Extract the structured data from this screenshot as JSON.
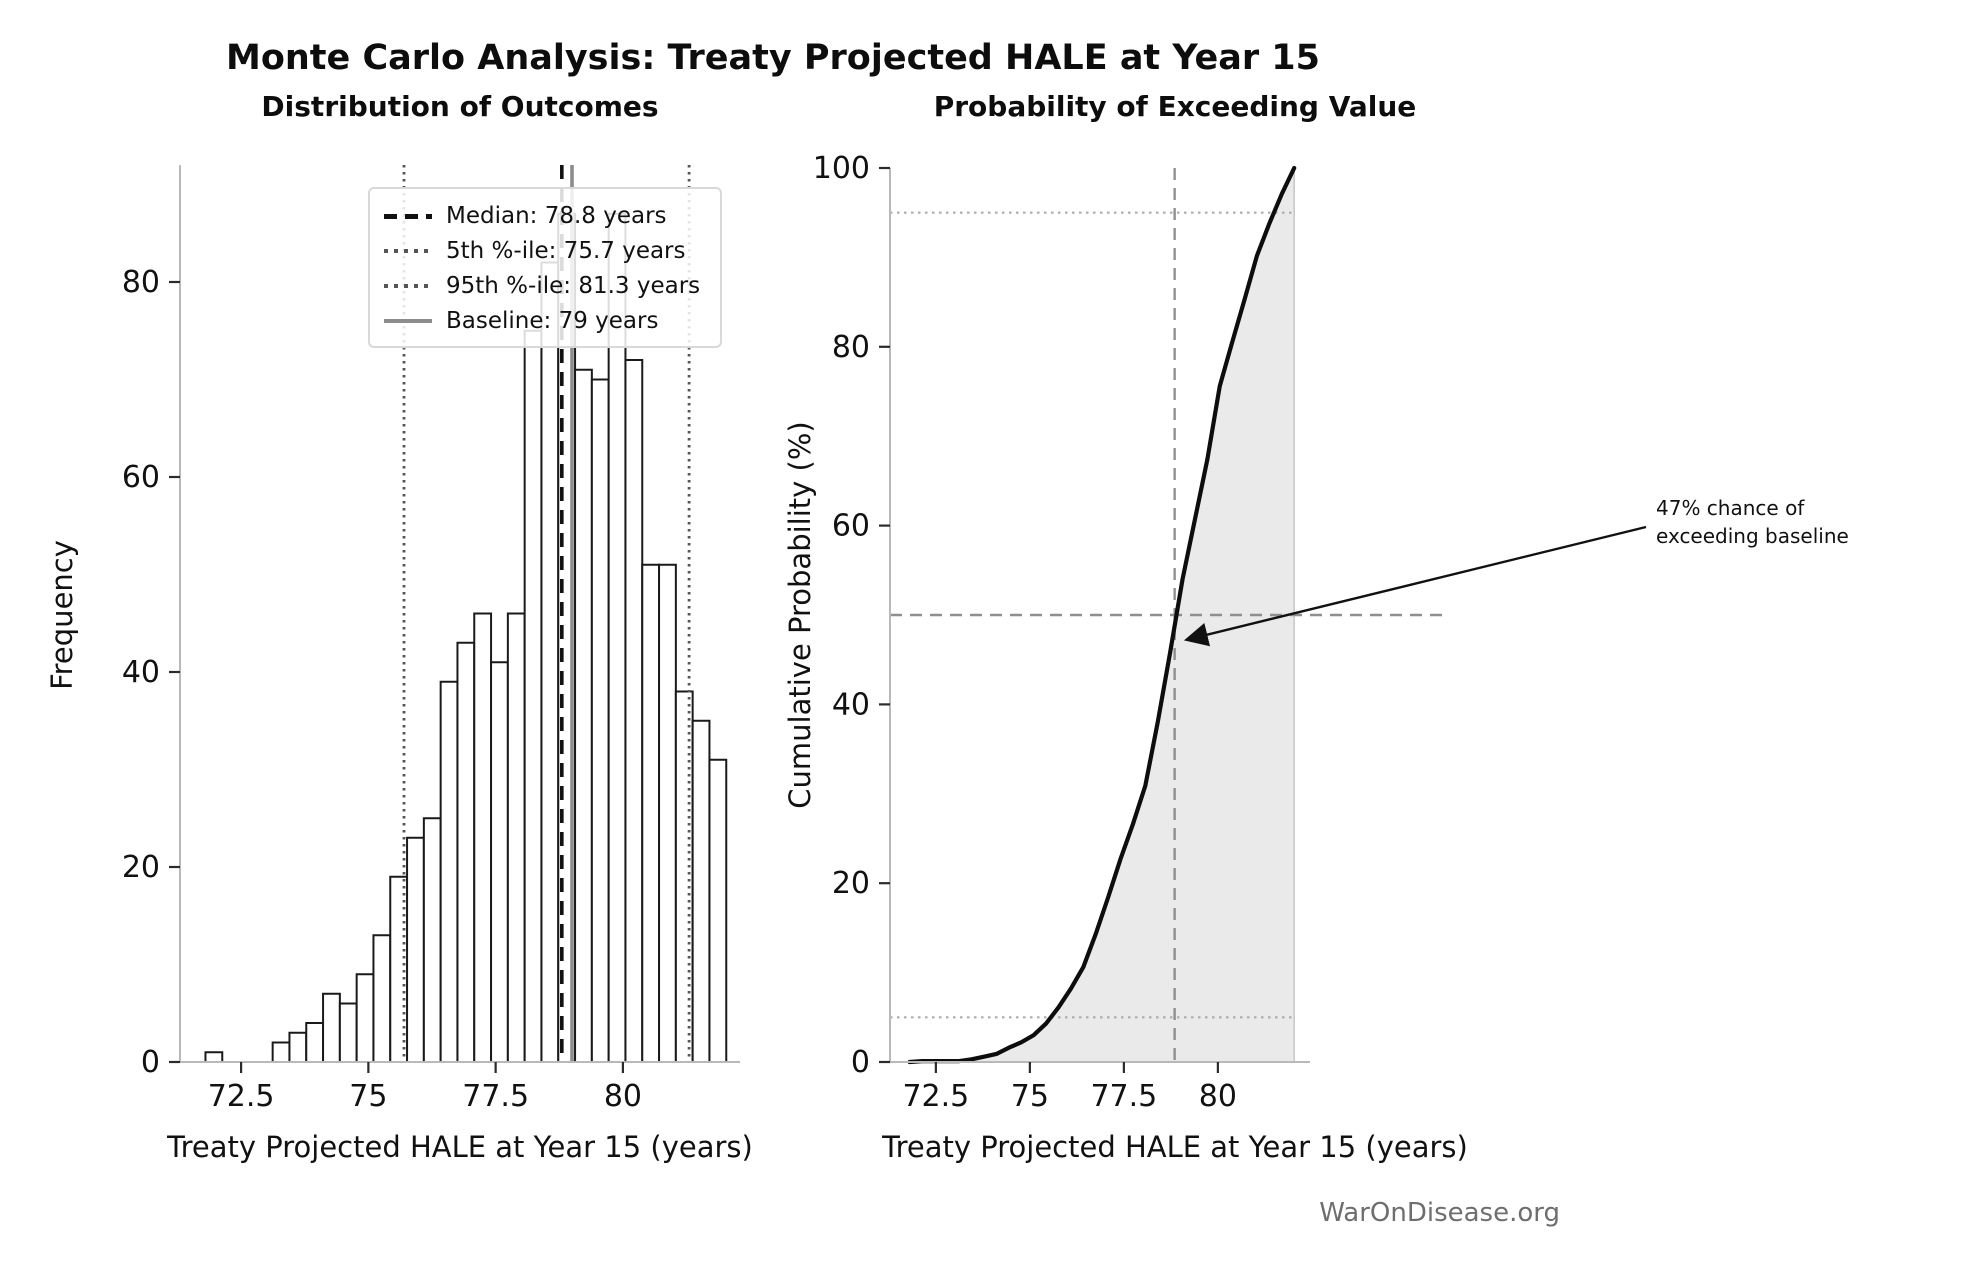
{
  "figure": {
    "title": "Monte Carlo Analysis: Treaty Projected HALE at Year 15",
    "watermark": "WarOnDisease.org"
  },
  "left_chart": {
    "title": "Distribution of Outcomes",
    "xlabel": "Treaty Projected HALE at Year 15 (years)",
    "ylabel": "Frequency",
    "legend": [
      {
        "id": "median",
        "label": "Median: 78.8 years"
      },
      {
        "id": "p5",
        "label": "5th %-ile: 75.7 years"
      },
      {
        "id": "p95",
        "label": "95th %-ile: 81.3 years"
      },
      {
        "id": "baseline",
        "label": "Baseline: 79 years"
      }
    ]
  },
  "right_chart": {
    "title": "Probability of Exceeding Value",
    "xlabel": "Treaty Projected HALE at Year 15 (years)",
    "ylabel": "Cumulative Probability (%)",
    "annotation_line1": "47% chance of",
    "annotation_line2": "exceeding baseline"
  },
  "chart_data": [
    {
      "type": "bar",
      "title": "Distribution of Outcomes",
      "xlabel": "Treaty Projected HALE at Year 15 (years)",
      "ylabel": "Frequency",
      "bin_start": 71.8,
      "bin_width": 0.33,
      "values": [
        1,
        0,
        0,
        0,
        2,
        3,
        4,
        7,
        6,
        9,
        13,
        19,
        23,
        25,
        39,
        43,
        46,
        41,
        46,
        75,
        82,
        87,
        71,
        70,
        87,
        72,
        51,
        51,
        38,
        35,
        31
      ],
      "x_ticks": [
        72.5,
        75,
        77.5,
        80
      ],
      "x_tick_labels": [
        "72.5",
        "75",
        "77.5",
        "80"
      ],
      "y_ticks": [
        0,
        20,
        40,
        60,
        80
      ],
      "y_tick_labels": [
        "0",
        "20",
        "40",
        "60",
        "80"
      ],
      "xlim": [
        71.3,
        82.3
      ],
      "ylim": [
        0,
        92
      ],
      "grid": false,
      "bar_fill": "#ffffff",
      "bar_edge": "#1a1a1a",
      "marker_lines": {
        "median": 78.8,
        "p5": 75.7,
        "p95": 81.3,
        "baseline": 79
      },
      "legend_entries": [
        "Median: 78.8 years",
        "5th %-ile: 75.7 years",
        "95th %-ile: 81.3 years",
        "Baseline: 79 years"
      ],
      "legend_position": "upper right"
    },
    {
      "type": "line",
      "title": "Probability of Exceeding Value",
      "xlabel": "Treaty Projected HALE at Year 15 (years)",
      "ylabel": "Cumulative Probability (%)",
      "x": [
        71.8,
        72.13,
        72.46,
        72.79,
        73.12,
        73.45,
        73.78,
        74.11,
        74.44,
        74.77,
        75.1,
        75.43,
        75.76,
        76.09,
        76.42,
        76.75,
        77.08,
        77.41,
        77.74,
        78.07,
        78.4,
        78.73,
        79.06,
        79.39,
        79.72,
        80.05,
        80.38,
        80.71,
        81.04,
        81.37,
        81.7,
        82.03
      ],
      "y": [
        0,
        0.1,
        0.1,
        0.1,
        0.1,
        0.3,
        0.6,
        0.9,
        1.6,
        2.2,
        3.0,
        4.3,
        6.1,
        8.2,
        10.6,
        14.3,
        18.4,
        22.7,
        26.6,
        30.9,
        38.0,
        45.8,
        54.0,
        60.7,
        67.4,
        75.6,
        80.5,
        85.3,
        90.2,
        93.8,
        97.1,
        100
      ],
      "x_ticks": [
        72.5,
        75,
        77.5,
        80
      ],
      "x_tick_labels": [
        "72.5",
        "75",
        "77.5",
        "80"
      ],
      "y_ticks": [
        0,
        20,
        40,
        60,
        80,
        100
      ],
      "y_tick_labels": [
        "0",
        "20",
        "40",
        "60",
        "80",
        "100"
      ],
      "xlim": [
        71.28,
        82.45
      ],
      "ylim": [
        0,
        100
      ],
      "grid": false,
      "line_color": "#0d0d0d",
      "fill_to_zero": true,
      "fill_color": "#eaeaea",
      "crosshair": {
        "x": 78.85,
        "y": 50
      },
      "percentile_hlines": [
        5,
        95
      ],
      "annotation": {
        "text": "47% chance of exceeding baseline",
        "points_to_x": 79.0,
        "points_to_y": 47
      }
    }
  ]
}
